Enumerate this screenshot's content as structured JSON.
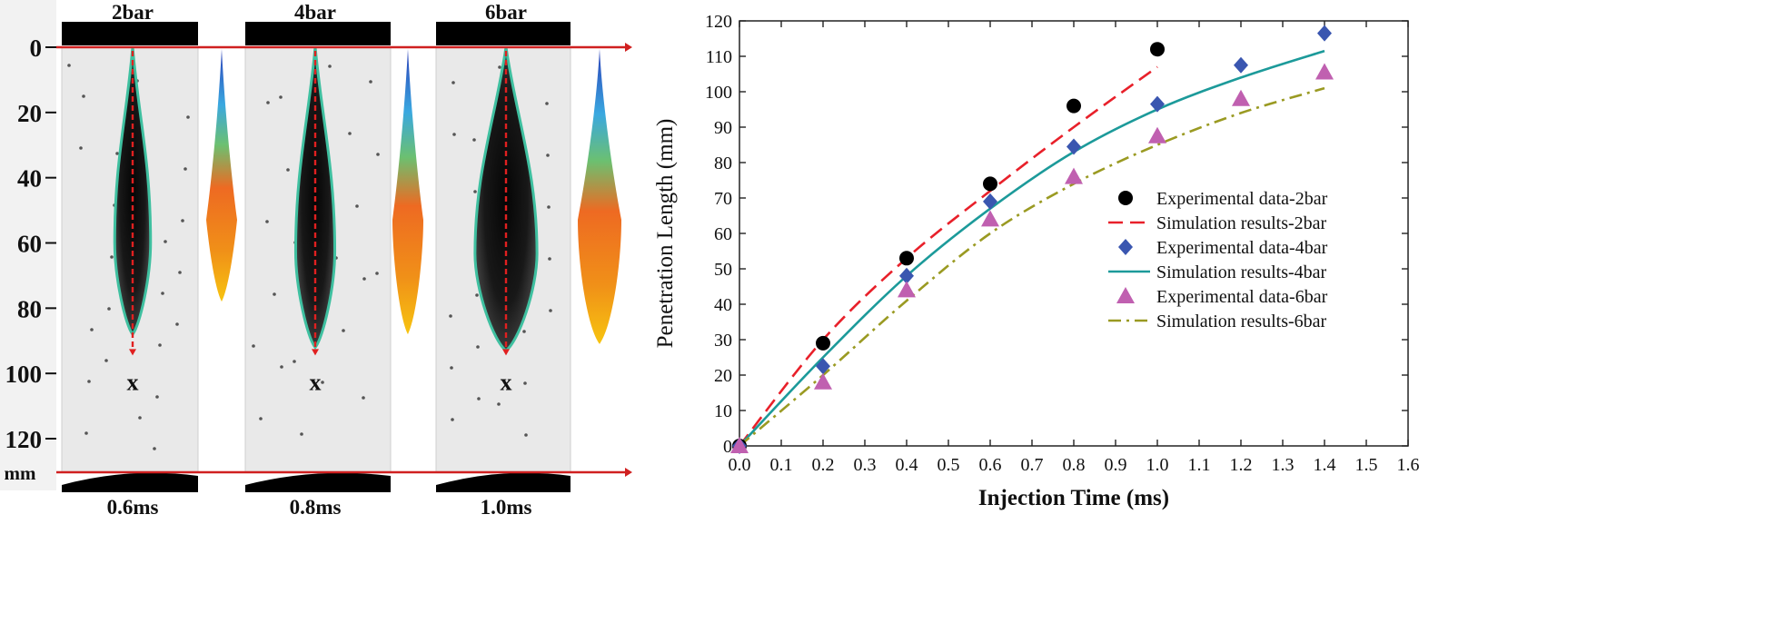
{
  "left_panel": {
    "pressure_labels": [
      "2bar",
      "4bar",
      "6bar"
    ],
    "time_labels": [
      "0.6ms",
      "0.8ms",
      "1.0ms"
    ],
    "depth_ticks": [
      "0",
      "20",
      "40",
      "60",
      "80",
      "100",
      "120"
    ],
    "unit_label": "mm",
    "tip_marker": "x",
    "tip_marker_depths_mm": [
      97,
      97,
      97
    ],
    "spray_tip_depths_mm": [
      88,
      92,
      93
    ],
    "spray_max_width_mm": [
      11,
      12,
      19
    ],
    "colored_sim_tip_depths_mm": [
      78,
      88,
      91
    ]
  },
  "chart_data": {
    "type": "scatter",
    "title": "",
    "xlabel": "Injection Time (ms)",
    "ylabel": "Penetration Length (mm)",
    "xlim": [
      0.0,
      1.6
    ],
    "ylim": [
      0,
      120
    ],
    "xticks": [
      "0.0",
      "0.1",
      "0.2",
      "0.3",
      "0.4",
      "0.5",
      "0.6",
      "0.7",
      "0.8",
      "0.9",
      "1.0",
      "1.1",
      "1.2",
      "1.3",
      "1.4",
      "1.5",
      "1.6"
    ],
    "yticks": [
      "0",
      "10",
      "20",
      "30",
      "40",
      "50",
      "60",
      "70",
      "80",
      "90",
      "100",
      "110",
      "120"
    ],
    "legend_position": "center-right",
    "series": [
      {
        "name": "Experimental data-2bar",
        "kind": "marker",
        "marker": "circle",
        "color": "#000000",
        "x": [
          0.0,
          0.2,
          0.4,
          0.6,
          0.8,
          1.0
        ],
        "y": [
          0,
          29,
          53,
          74,
          96,
          112
        ]
      },
      {
        "name": "Simulation results-2bar",
        "kind": "line",
        "dash": "dashed",
        "color": "#e8202a",
        "x": [
          0.0,
          0.2,
          0.4,
          0.6,
          0.8,
          1.0
        ],
        "y": [
          0,
          30,
          53,
          72,
          90,
          107
        ]
      },
      {
        "name": "Experimental data-4bar",
        "kind": "marker",
        "marker": "diamond",
        "color": "#3a56b0",
        "x": [
          0.0,
          0.2,
          0.4,
          0.6,
          0.8,
          1.0,
          1.2,
          1.4
        ],
        "y": [
          0,
          22.5,
          48,
          69,
          84.5,
          96.5,
          107.5,
          116.5
        ]
      },
      {
        "name": "Simulation results-4bar",
        "kind": "line",
        "dash": "solid",
        "color": "#1c9a9a",
        "x": [
          0.0,
          0.2,
          0.4,
          0.6,
          0.8,
          1.0,
          1.2,
          1.4
        ],
        "y": [
          0,
          25,
          48,
          67,
          83,
          95,
          104,
          111.5
        ]
      },
      {
        "name": "Experimental data-6bar",
        "kind": "marker",
        "marker": "triangle",
        "color": "#c060b0",
        "x": [
          0.0,
          0.2,
          0.4,
          0.6,
          0.8,
          1.0,
          1.2,
          1.4
        ],
        "y": [
          0,
          18,
          44,
          64,
          76,
          87.5,
          98,
          105.5
        ]
      },
      {
        "name": "Simulation results-6bar",
        "kind": "line",
        "dash": "dashdot",
        "color": "#9a9a22",
        "x": [
          0.0,
          0.2,
          0.4,
          0.6,
          0.8,
          1.0,
          1.2,
          1.4
        ],
        "y": [
          0,
          20,
          41,
          60,
          74,
          85,
          94,
          101
        ]
      }
    ]
  }
}
